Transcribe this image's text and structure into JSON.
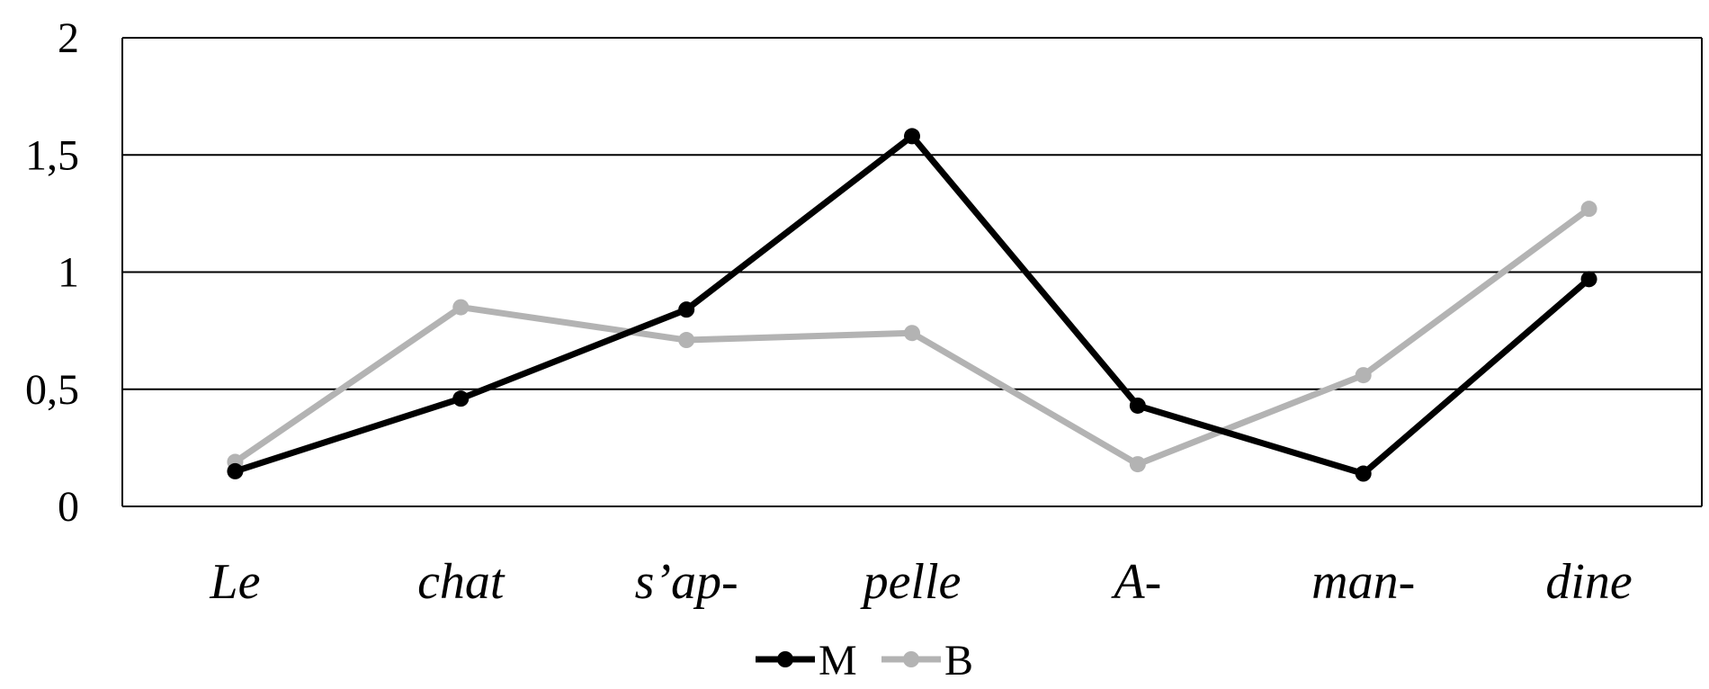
{
  "chart_data": {
    "type": "line",
    "title": "",
    "xlabel": "",
    "ylabel": "",
    "categories": [
      "Le",
      "chat",
      "s’ap-",
      "pelle",
      "A-",
      "man-",
      "dine"
    ],
    "ylim": [
      0,
      2
    ],
    "yticks": [
      "0",
      "0,5",
      "1",
      "1,5",
      "2"
    ],
    "ytick_values": [
      0,
      0.5,
      1,
      1.5,
      2
    ],
    "grid": true,
    "legend_position": "bottom",
    "series": [
      {
        "name": "M",
        "color": "#000000",
        "values": [
          0.15,
          0.46,
          0.84,
          1.58,
          0.43,
          0.14,
          0.97
        ]
      },
      {
        "name": "B",
        "color": "#b3b3b3",
        "values": [
          0.19,
          0.85,
          0.71,
          0.74,
          0.18,
          0.56,
          1.27
        ]
      }
    ]
  }
}
